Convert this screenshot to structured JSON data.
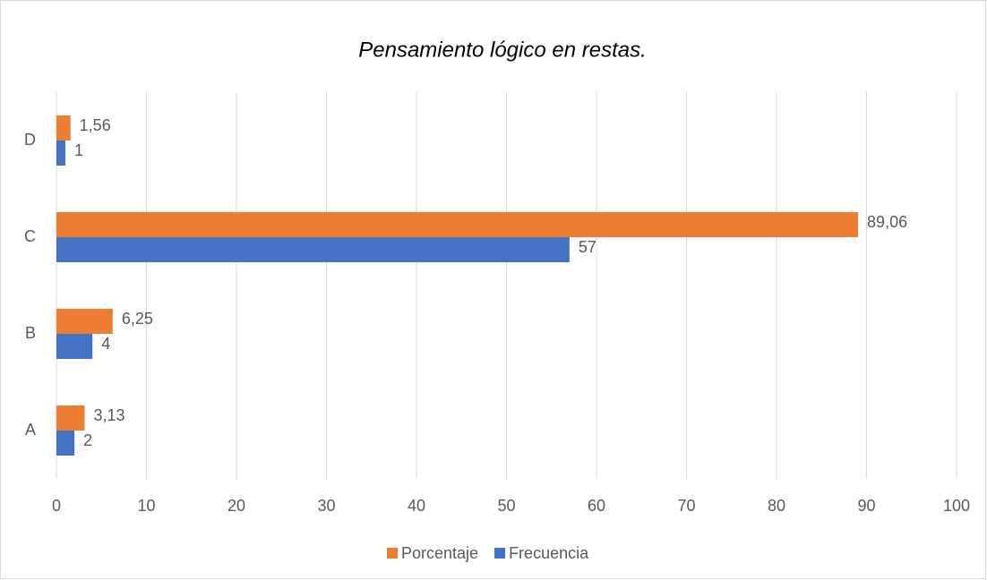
{
  "chart_data": {
    "type": "hbar",
    "title": "Pensamiento lógico en restas.",
    "categories": [
      "A",
      "B",
      "C",
      "D"
    ],
    "series": [
      {
        "name": "Porcentaje",
        "color": "#ed7d31",
        "values": [
          3.13,
          6.25,
          89.06,
          1.56
        ],
        "value_labels": [
          "3,13",
          "6,25",
          "89,06",
          "1,56"
        ]
      },
      {
        "name": "Frecuencia",
        "color": "#4472c4",
        "values": [
          2,
          4,
          57,
          1
        ]
      }
    ],
    "xlim": [
      0,
      100
    ],
    "xticks": [
      0,
      10,
      20,
      30,
      40,
      50,
      60,
      70,
      80,
      90,
      100
    ],
    "grid": true,
    "legend": "bottom"
  }
}
